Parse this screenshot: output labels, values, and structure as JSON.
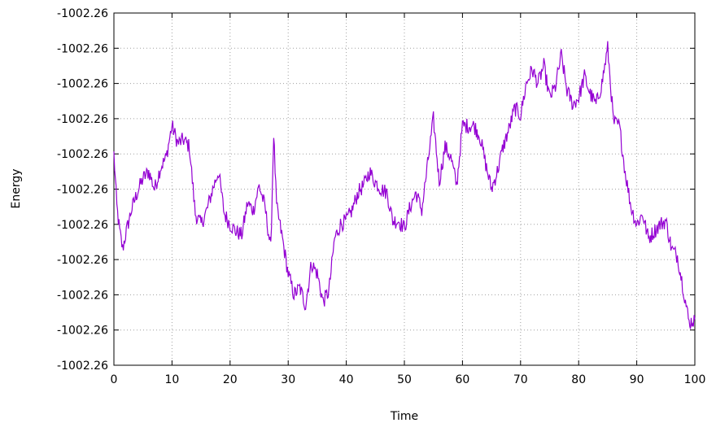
{
  "chart_data": {
    "type": "line",
    "title": "",
    "xlabel": "Time",
    "ylabel": "Energy",
    "xlim": [
      0,
      100
    ],
    "xticks": [
      0,
      10,
      20,
      30,
      40,
      50,
      60,
      70,
      80,
      90,
      100
    ],
    "ytick_labels": [
      "-1002.26",
      "-1002.26",
      "-1002.26",
      "-1002.26",
      "-1002.26",
      "-1002.26",
      "-1002.26",
      "-1002.26",
      "-1002.26",
      "-1002.26",
      "-1002.26"
    ],
    "grid": true,
    "legend": "none",
    "y_scale_note": "y values below are normalized positions within the axis range (0 = bottom axis, 1 = top axis)",
    "series": [
      {
        "color": "#9400d3",
        "x": [
          0,
          0.5,
          1,
          1.5,
          2,
          3,
          4,
          5,
          6,
          7,
          8,
          9,
          10,
          11,
          12,
          13,
          14,
          15,
          16,
          17,
          18,
          19,
          20,
          21,
          22,
          23,
          24,
          25,
          26,
          27,
          27.5,
          28,
          29,
          30,
          31,
          32,
          33,
          34,
          35,
          36,
          37,
          38,
          39,
          40,
          41,
          42,
          43,
          44,
          45,
          46,
          47,
          48,
          49,
          50,
          51,
          52,
          53,
          54,
          55,
          56,
          57,
          58,
          59,
          60,
          61,
          62,
          63,
          64,
          65,
          66,
          67,
          68,
          69,
          70,
          71,
          72,
          73,
          74,
          75,
          76,
          77,
          78,
          79,
          80,
          81,
          82,
          83,
          84,
          85,
          86,
          87,
          88,
          89,
          90,
          91,
          92,
          93,
          94,
          95,
          96,
          97,
          98,
          99,
          100
        ],
        "values": [
          0.6,
          0.45,
          0.38,
          0.33,
          0.37,
          0.44,
          0.49,
          0.53,
          0.55,
          0.5,
          0.56,
          0.59,
          0.68,
          0.63,
          0.64,
          0.62,
          0.43,
          0.4,
          0.44,
          0.5,
          0.55,
          0.43,
          0.4,
          0.38,
          0.37,
          0.46,
          0.44,
          0.51,
          0.45,
          0.33,
          0.66,
          0.45,
          0.36,
          0.26,
          0.2,
          0.22,
          0.17,
          0.29,
          0.26,
          0.18,
          0.21,
          0.36,
          0.4,
          0.41,
          0.44,
          0.49,
          0.51,
          0.55,
          0.52,
          0.5,
          0.49,
          0.41,
          0.41,
          0.39,
          0.45,
          0.49,
          0.44,
          0.57,
          0.7,
          0.52,
          0.62,
          0.59,
          0.51,
          0.68,
          0.68,
          0.68,
          0.65,
          0.57,
          0.5,
          0.55,
          0.62,
          0.67,
          0.73,
          0.71,
          0.8,
          0.84,
          0.8,
          0.85,
          0.76,
          0.79,
          0.88,
          0.78,
          0.74,
          0.76,
          0.82,
          0.77,
          0.74,
          0.8,
          0.9,
          0.69,
          0.68,
          0.55,
          0.45,
          0.4,
          0.43,
          0.36,
          0.38,
          0.4,
          0.41,
          0.33,
          0.31,
          0.22,
          0.12,
          0.13
        ]
      }
    ]
  }
}
